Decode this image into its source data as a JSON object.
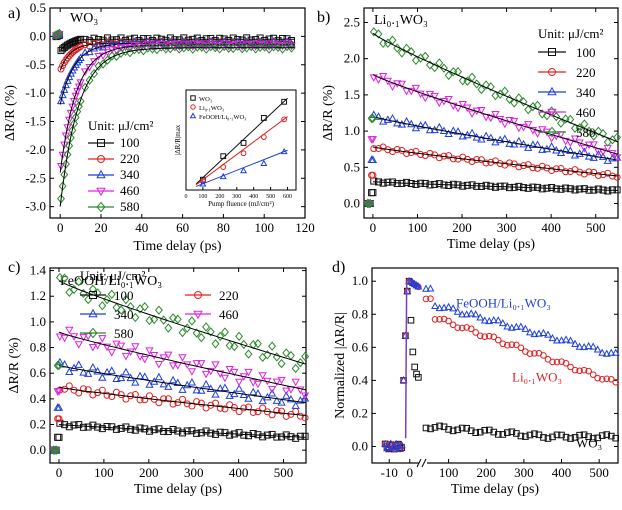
{
  "colors": {
    "100": "#111111",
    "220": "#e02020",
    "340": "#1f3fdc",
    "460": "#e020e0",
    "580": "#2a8a2a",
    "fit": "#000000"
  },
  "chart_data": [
    {
      "panel": "a)",
      "type": "line",
      "title": "WO₃",
      "xlabel": "Time delay (ps)",
      "ylabel": "ΔR/R (%)",
      "xlim": [
        -5,
        120
      ],
      "ylim": [
        -3.2,
        0.5
      ],
      "xticks": [
        0,
        20,
        40,
        60,
        80,
        100,
        120
      ],
      "yticks": [
        0.5,
        0.0,
        -0.5,
        -1.0,
        -1.5,
        -2.0,
        -2.5,
        -3.0
      ],
      "legend_title": "Unit: μJ/cm²",
      "series": [
        {
          "name": "100",
          "key": "100",
          "marker": "square",
          "peak": -0.25,
          "tail": -0.05,
          "tau": 4
        },
        {
          "name": "220",
          "key": "220",
          "marker": "circle",
          "peak": -0.6,
          "tail": -0.12,
          "tau": 5
        },
        {
          "name": "340",
          "key": "340",
          "marker": "triangle",
          "peak": -1.2,
          "tail": -0.12,
          "tau": 7
        },
        {
          "name": "460",
          "key": "460",
          "marker": "tri-down",
          "peak": -2.4,
          "tail": -0.15,
          "tau": 8
        },
        {
          "name": "580",
          "key": "580",
          "marker": "diamond",
          "peak": -3.0,
          "tail": -0.2,
          "tau": 9
        }
      ],
      "inset": {
        "xlabel": "Pump fluence (mJ/cm²)",
        "ylabel": "|ΔR/R|max",
        "xlim": [
          0,
          650
        ],
        "xticks": [
          0,
          100,
          200,
          300,
          400,
          500,
          600
        ],
        "series": [
          {
            "name": "WO₃",
            "key": "100",
            "marker": "square",
            "x": [
              100,
              220,
              340,
              460,
              580
            ],
            "y": [
              0.35,
              1.15,
              1.6,
              2.45,
              3.0
            ]
          },
          {
            "name": "Li₀.₁WO₃",
            "key": "220",
            "marker": "circle",
            "x": [
              100,
              220,
              340,
              460,
              580
            ],
            "y": [
              0.3,
              0.78,
              1.25,
              1.8,
              2.4
            ]
          },
          {
            "name": "FeOOH/Li₀.₁WO₃",
            "key": "340",
            "marker": "triangle",
            "x": [
              100,
              220,
              340,
              460,
              580
            ],
            "y": [
              0.2,
              0.45,
              0.65,
              0.9,
              1.3
            ]
          }
        ]
      }
    },
    {
      "panel": "b)",
      "type": "line",
      "title": "Li₀.₁WO₃",
      "xlabel": "Time delay (ps)",
      "ylabel": "ΔR/R (%)",
      "xlim": [
        -20,
        550
      ],
      "ylim": [
        -0.2,
        2.7
      ],
      "xticks": [
        0,
        100,
        200,
        300,
        400,
        500
      ],
      "yticks": [
        0.0,
        0.5,
        1.0,
        1.5,
        2.0,
        2.5
      ],
      "legend_title": "Unit: μJ/cm²",
      "series": [
        {
          "name": "100",
          "key": "100",
          "marker": "square",
          "start": 0.3,
          "end": 0.18
        },
        {
          "name": "220",
          "key": "220",
          "marker": "circle",
          "start": 0.78,
          "end": 0.38
        },
        {
          "name": "340",
          "key": "340",
          "marker": "triangle",
          "start": 1.2,
          "end": 0.6
        },
        {
          "name": "460",
          "key": "460",
          "marker": "tri-down",
          "start": 1.78,
          "end": 0.68
        },
        {
          "name": "580",
          "key": "580",
          "marker": "diamond",
          "start": 2.35,
          "end": 0.85
        }
      ]
    },
    {
      "panel": "c)",
      "type": "line",
      "title": "FeOOH/Li₀.₁WO₃",
      "xlabel": "Time delay (ps)",
      "ylabel": "ΔR/R (%)",
      "xlim": [
        -20,
        550
      ],
      "ylim": [
        -0.1,
        1.42
      ],
      "xticks": [
        0,
        100,
        200,
        300,
        400,
        500
      ],
      "yticks": [
        0.0,
        0.2,
        0.4,
        0.6,
        0.8,
        1.0,
        1.2,
        1.4
      ],
      "legend_title": "Unit: μJ/cm²",
      "series": [
        {
          "name": "100",
          "key": "100",
          "marker": "square",
          "start": 0.2,
          "end": 0.1
        },
        {
          "name": "220",
          "key": "220",
          "marker": "circle",
          "start": 0.49,
          "end": 0.27
        },
        {
          "name": "340",
          "key": "340",
          "marker": "triangle",
          "start": 0.66,
          "end": 0.37
        },
        {
          "name": "460",
          "key": "460",
          "marker": "tri-down",
          "start": 0.92,
          "end": 0.47
        },
        {
          "name": "580",
          "key": "580",
          "marker": "diamond",
          "start": 1.32,
          "end": 0.67
        }
      ]
    },
    {
      "panel": "d)",
      "type": "line",
      "xlabel": "Time delay (ps)",
      "ylabel": "Normalized |ΔR/R|",
      "ylim": [
        -0.1,
        1.08
      ],
      "xticks_left": [
        -10,
        0
      ],
      "xticks_right": [
        100,
        200,
        300,
        400,
        500
      ],
      "yticks": [
        0.0,
        0.2,
        0.4,
        0.6,
        0.8,
        1.0
      ],
      "series": [
        {
          "name": "WO₃",
          "key": "100",
          "marker": "square",
          "start": 0.3,
          "mid": 0.12,
          "end": 0.06
        },
        {
          "name": "Li₀.₁WO₃",
          "key": "220",
          "marker": "circle",
          "start": 0.92,
          "mid": 0.8,
          "end": 0.38
        },
        {
          "name": "FeOOH/Li₀.₁WO₃",
          "key": "340",
          "marker": "triangle",
          "start": 0.98,
          "mid": 0.87,
          "end": 0.55
        }
      ]
    }
  ]
}
